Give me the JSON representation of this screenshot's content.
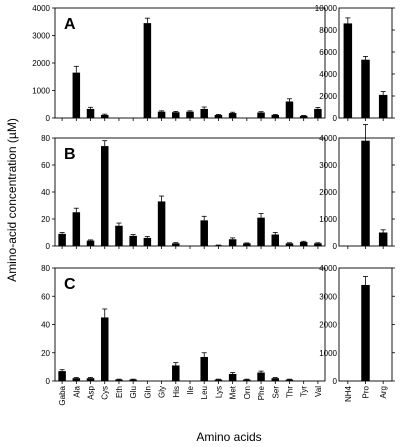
{
  "chart_data": {
    "type": "bar",
    "ylabel": "Amino-acid concentration (µM)",
    "xlabel": "Amino acids",
    "categories_left": [
      "Gaba",
      "Ala",
      "Asp",
      "Cys",
      "Eth",
      "Glu",
      "Gln",
      "Gly",
      "His",
      "Ile",
      "Leu",
      "Lys",
      "Met",
      "Orn",
      "Phe",
      "Ser",
      "Thr",
      "Tyr",
      "Val"
    ],
    "categories_right": [
      "NH4",
      "Pro",
      "Arg"
    ],
    "panels": [
      {
        "label": "A",
        "left": {
          "ylim": [
            0,
            4000
          ],
          "yticks": [
            0,
            1000,
            2000,
            3000,
            4000
          ],
          "values": [
            0,
            1650,
            330,
            110,
            0,
            0,
            3450,
            230,
            210,
            230,
            330,
            110,
            180,
            0,
            200,
            110,
            600,
            80,
            330
          ],
          "errors": [
            0,
            230,
            60,
            30,
            0,
            0,
            180,
            30,
            30,
            30,
            70,
            20,
            30,
            0,
            30,
            20,
            100,
            15,
            50
          ]
        },
        "right": {
          "ylim": [
            0,
            10000
          ],
          "yticks": [
            0,
            2000,
            4000,
            6000,
            8000,
            10000
          ],
          "values": [
            8600,
            5300,
            2100
          ],
          "errors": [
            500,
            300,
            300
          ]
        }
      },
      {
        "label": "B",
        "left": {
          "ylim": [
            0,
            80
          ],
          "yticks": [
            0,
            20,
            40,
            60,
            80
          ],
          "values": [
            9,
            25,
            4,
            74,
            15,
            7.5,
            6,
            33,
            2,
            0,
            19,
            0.5,
            5,
            2,
            21,
            8.5,
            2,
            3,
            2
          ],
          "errors": [
            1,
            3,
            0.5,
            4,
            2,
            1,
            1,
            4,
            0.5,
            0,
            3,
            0.2,
            1,
            0.3,
            3,
            1.5,
            0.4,
            0.5,
            0.4
          ]
        },
        "right": {
          "ylim": [
            0,
            4000
          ],
          "yticks": [
            0,
            1000,
            2000,
            3000,
            4000
          ],
          "values": [
            0,
            3900,
            500
          ],
          "errors": [
            0,
            600,
            100
          ]
        }
      },
      {
        "label": "C",
        "left": {
          "ylim": [
            0,
            80
          ],
          "yticks": [
            0,
            20,
            40,
            60,
            80
          ],
          "values": [
            7,
            2,
            2,
            45,
            1,
            1,
            0,
            0,
            11,
            0,
            17,
            1,
            5,
            1,
            6,
            2,
            1,
            0,
            0
          ],
          "errors": [
            1,
            0.5,
            0.5,
            6,
            0.3,
            0.3,
            0,
            0,
            2,
            0,
            3,
            0.3,
            1,
            0.3,
            1,
            0.5,
            0.3,
            0,
            0
          ]
        },
        "right": {
          "ylim": [
            0,
            4000
          ],
          "yticks": [
            0,
            1000,
            2000,
            3000,
            4000
          ],
          "values": [
            0,
            3400,
            0
          ],
          "errors": [
            0,
            300,
            0
          ]
        }
      }
    ]
  }
}
